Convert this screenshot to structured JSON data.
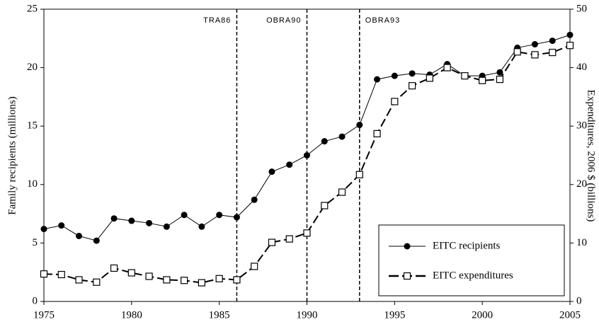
{
  "chart_data": {
    "type": "line",
    "ylabel": "Family recipients (millions)",
    "y2label": "Expenditures, 2006 $ (billions)",
    "x": [
      1975,
      1976,
      1977,
      1978,
      1979,
      1980,
      1981,
      1982,
      1983,
      1984,
      1985,
      1986,
      1987,
      1988,
      1989,
      1990,
      1991,
      1992,
      1993,
      1994,
      1995,
      1996,
      1997,
      1998,
      1999,
      2000,
      2001,
      2002,
      2003,
      2004,
      2005
    ],
    "series": [
      {
        "name": "EITC recipients",
        "color": "#000000",
        "marker": "circle",
        "dash": "solid",
        "values": [
          6.2,
          6.5,
          5.6,
          5.2,
          7.1,
          6.9,
          6.7,
          6.4,
          7.4,
          6.4,
          7.4,
          7.2,
          8.7,
          11.1,
          11.7,
          12.5,
          13.7,
          14.1,
          15.1,
          19.0,
          19.3,
          19.5,
          19.4,
          20.3,
          19.3,
          19.3,
          19.6,
          21.7,
          22.0,
          22.3,
          22.8
        ]
      },
      {
        "name": "EITC expenditures",
        "color": "#000000",
        "marker": "square",
        "dash": "dashed",
        "axis": "y2",
        "values": [
          4.7,
          4.6,
          3.7,
          3.3,
          5.7,
          4.9,
          4.3,
          3.7,
          3.6,
          3.2,
          3.9,
          3.7,
          6.0,
          10.1,
          10.7,
          11.7,
          16.4,
          18.7,
          21.7,
          28.7,
          34.2,
          36.9,
          38.2,
          40.0,
          38.6,
          37.8,
          38.0,
          42.7,
          42.2,
          42.6,
          43.8
        ]
      }
    ],
    "annotations": [
      {
        "x": 1986,
        "label": "TRA86"
      },
      {
        "x": 1990,
        "label": "OBRA90"
      },
      {
        "x": 1993,
        "label": "OBRA93"
      }
    ],
    "xlim": [
      1975,
      2005
    ],
    "xticks": [
      1975,
      1980,
      1985,
      1990,
      1995,
      2000,
      2005
    ],
    "ylim": [
      0,
      25
    ],
    "yticks": [
      0,
      5,
      10,
      15,
      20,
      25
    ],
    "y2lim": [
      0,
      50
    ],
    "y2ticks": [
      0,
      10,
      20,
      30,
      40,
      50
    ],
    "legend": "lower right"
  }
}
